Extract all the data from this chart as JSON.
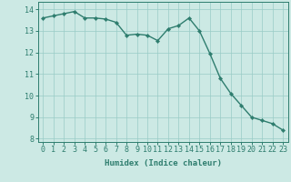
{
  "x": [
    0,
    1,
    2,
    3,
    4,
    5,
    6,
    7,
    8,
    9,
    10,
    11,
    12,
    13,
    14,
    15,
    16,
    17,
    18,
    19,
    20,
    21,
    22,
    23
  ],
  "y": [
    13.6,
    13.7,
    13.8,
    13.9,
    13.6,
    13.6,
    13.55,
    13.4,
    12.8,
    12.85,
    12.8,
    12.55,
    13.1,
    13.25,
    13.6,
    13.0,
    11.95,
    10.8,
    10.1,
    9.55,
    9.0,
    8.85,
    8.7,
    8.4
  ],
  "line_color": "#2e7d6e",
  "marker": "D",
  "marker_size": 2.2,
  "line_width": 1.0,
  "bg_color": "#cce9e4",
  "grid_color": "#99ccc6",
  "xlabel": "Humidex (Indice chaleur)",
  "xlim": [
    -0.5,
    23.5
  ],
  "ylim": [
    7.85,
    14.35
  ],
  "yticks": [
    8,
    9,
    10,
    11,
    12,
    13,
    14
  ],
  "xticks": [
    0,
    1,
    2,
    3,
    4,
    5,
    6,
    7,
    8,
    9,
    10,
    11,
    12,
    13,
    14,
    15,
    16,
    17,
    18,
    19,
    20,
    21,
    22,
    23
  ],
  "tick_color": "#2e7d6e",
  "label_fontsize": 6.5,
  "tick_fontsize": 6.0
}
